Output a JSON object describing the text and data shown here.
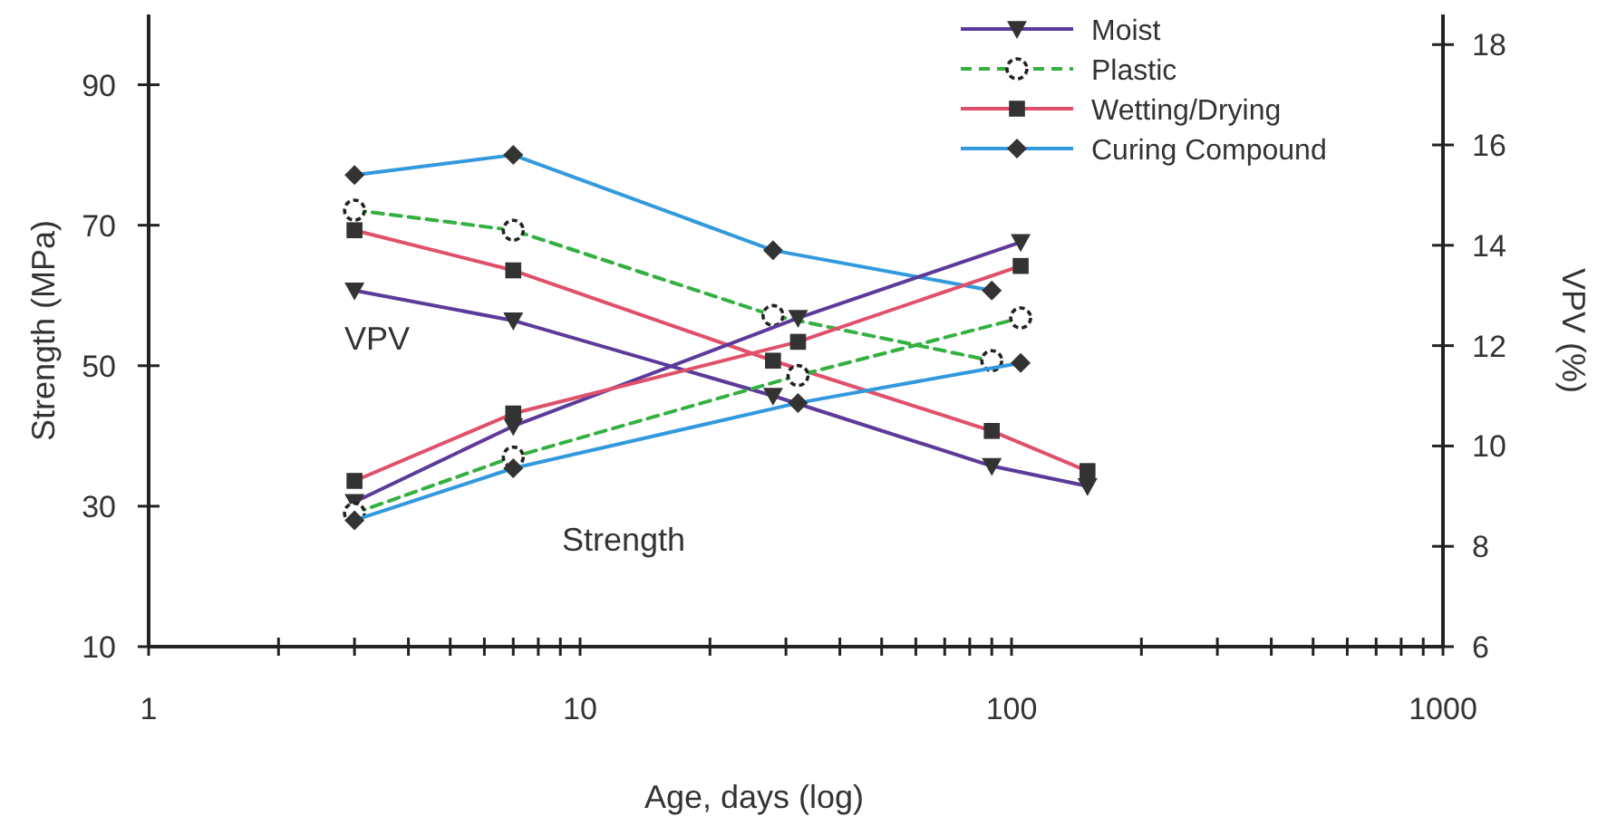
{
  "chart_data": {
    "type": "line",
    "xlabel": "Age, days (log)",
    "ylabel": "Strength (MPa)",
    "y2label": "VPV (%)",
    "log": "x",
    "xlim": [
      1,
      1000
    ],
    "xticks": [
      1,
      {
        "value": 2,
        "label": null
      },
      {
        "value": 3,
        "label": null
      },
      {
        "value": 4,
        "label": null
      },
      {
        "value": 5,
        "label": null
      },
      {
        "value": 6,
        "label": null
      },
      {
        "value": 7,
        "label": null
      },
      {
        "value": 8,
        "label": null
      },
      {
        "value": 9,
        "label": null
      },
      10,
      {
        "value": 20,
        "label": null
      },
      {
        "value": 30,
        "label": null
      },
      {
        "value": 40,
        "label": null
      },
      {
        "value": 50,
        "label": null
      },
      {
        "value": 60,
        "label": null
      },
      {
        "value": 70,
        "label": null
      },
      {
        "value": 80,
        "label": null
      },
      {
        "value": 90,
        "label": null
      },
      100,
      {
        "value": 200,
        "label": null
      },
      {
        "value": 300,
        "label": null
      },
      {
        "value": 400,
        "label": null
      },
      {
        "value": 500,
        "label": null
      },
      {
        "value": 600,
        "label": null
      },
      {
        "value": 700,
        "label": null
      },
      {
        "value": 800,
        "label": null
      },
      {
        "value": 900,
        "label": null
      },
      1000
    ],
    "ylim": [
      10,
      100
    ],
    "yticks": [
      10,
      30,
      50,
      70,
      90
    ],
    "y2lim": [
      6,
      18.6
    ],
    "y2ticks": [
      6,
      8,
      10,
      12,
      14,
      16,
      18
    ],
    "grid": false,
    "legend": "top right",
    "annotations": [
      "VPV",
      "Strength"
    ],
    "series": [
      {
        "name": "Moist",
        "color": "#5b3a9a",
        "marker": "triangle",
        "line_style": "solid",
        "axis": "y2",
        "x": [
          3,
          7,
          28,
          90,
          150
        ],
        "values": [
          13.1,
          12.5,
          11.0,
          9.6,
          9.2
        ]
      },
      {
        "name": "Plastic",
        "color": "#33b040",
        "marker": "circle",
        "line_style": "dashed",
        "axis": "y2",
        "x": [
          3,
          7,
          28,
          90
        ],
        "values": [
          14.7,
          14.3,
          12.6,
          11.7
        ]
      },
      {
        "name": "Wetting/Drying",
        "color": "#e0506a",
        "marker": "square",
        "line_style": "solid",
        "axis": "y2",
        "x": [
          3,
          7,
          28,
          90,
          150
        ],
        "values": [
          14.3,
          13.5,
          11.7,
          10.3,
          9.5
        ]
      },
      {
        "name": "Curing Compound",
        "color": "#3399dd",
        "marker": "diamond",
        "line_style": "solid",
        "axis": "y2",
        "x": [
          3,
          7,
          28,
          90
        ],
        "values": [
          15.4,
          15.8,
          13.9,
          13.1
        ]
      },
      {
        "color": "#5b3a9a",
        "marker": "triangle",
        "line_style": "solid",
        "axis": "y",
        "x": [
          3,
          7,
          32,
          105
        ],
        "values": [
          30.6,
          41.4,
          56.8,
          67.6
        ]
      },
      {
        "color": "#33b040",
        "marker": "circle",
        "line_style": "dashed",
        "axis": "y",
        "x": [
          3,
          7,
          32,
          105
        ],
        "values": [
          29.0,
          37.0,
          48.6,
          56.8
        ]
      },
      {
        "color": "#e0506a",
        "marker": "square",
        "line_style": "solid",
        "axis": "y",
        "x": [
          3,
          7,
          32,
          105
        ],
        "values": [
          33.6,
          43.2,
          53.4,
          64.2
        ]
      },
      {
        "color": "#3399dd",
        "marker": "diamond",
        "line_style": "solid",
        "axis": "y",
        "x": [
          3,
          7,
          32,
          105
        ],
        "values": [
          28.0,
          35.4,
          44.7,
          50.4
        ]
      }
    ]
  }
}
